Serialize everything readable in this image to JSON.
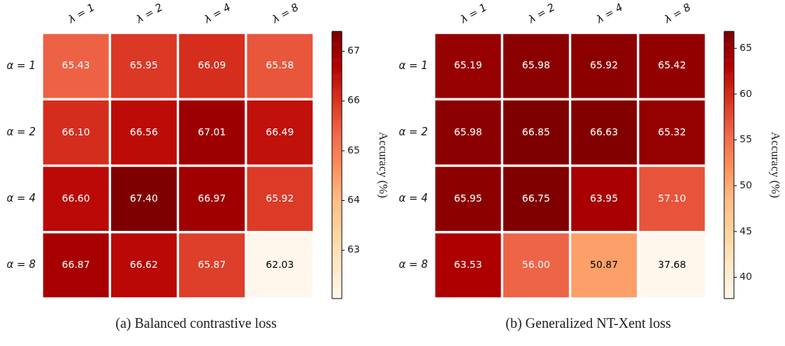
{
  "chart_data": [
    {
      "type": "heatmap",
      "categories": [
        "λ = 1",
        "λ = 2",
        "λ = 4",
        "λ = 8"
      ],
      "y_categories": [
        "α = 1",
        "α = 2",
        "α = 4",
        "α = 8"
      ],
      "cells": [
        [
          65.43,
          65.95,
          66.09,
          65.58
        ],
        [
          66.1,
          66.56,
          67.01,
          66.49
        ],
        [
          66.6,
          67.4,
          66.97,
          65.92
        ],
        [
          66.87,
          66.62,
          65.87,
          62.03
        ]
      ],
      "cell_labels": [
        [
          "65.43",
          "65.95",
          "66.09",
          "65.58"
        ],
        [
          "66.10",
          "66.56",
          "67.01",
          "66.49"
        ],
        [
          "66.60",
          "67.40",
          "66.97",
          "65.92"
        ],
        [
          "66.87",
          "66.62",
          "65.87",
          "62.03"
        ]
      ],
      "clim": [
        62.03,
        67.4
      ],
      "cticks": [
        63,
        64,
        65,
        66,
        67
      ],
      "clabel": "Accuracy (%)",
      "data_labels": true,
      "annotations": [
        "(a) Balanced contrastive loss"
      ]
    },
    {
      "type": "heatmap",
      "categories": [
        "λ = 1",
        "λ = 2",
        "λ = 4",
        "λ = 8"
      ],
      "y_categories": [
        "α = 1",
        "α = 2",
        "α = 4",
        "α = 8"
      ],
      "cells": [
        [
          65.19,
          65.98,
          65.92,
          65.42
        ],
        [
          65.98,
          66.85,
          66.63,
          65.32
        ],
        [
          65.95,
          66.75,
          63.95,
          57.1
        ],
        [
          63.53,
          56.0,
          50.87,
          37.68
        ]
      ],
      "cell_labels": [
        [
          "65.19",
          "65.98",
          "65.92",
          "65.42"
        ],
        [
          "65.98",
          "66.85",
          "66.63",
          "65.32"
        ],
        [
          "65.95",
          "66.75",
          "63.95",
          "57.10"
        ],
        [
          "63.53",
          "56.00",
          "50.87",
          "37.68"
        ]
      ],
      "clim": [
        37.68,
        66.85
      ],
      "cticks": [
        40,
        45,
        50,
        55,
        60,
        65
      ],
      "clabel": "Accuracy (%)",
      "data_labels": true,
      "annotations": [
        "(b) Generalized NT-Xent loss"
      ]
    }
  ]
}
